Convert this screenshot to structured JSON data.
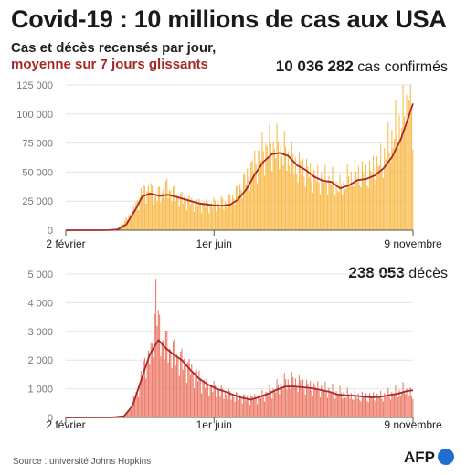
{
  "header": {
    "title": "Covid-19 : 10 millions de cas aux USA",
    "subtitle_line1": "Cas et décès recensés par jour,",
    "subtitle_line2": "moyenne sur 7 jours glissants"
  },
  "colors": {
    "cases_bar": "#f9bb4b",
    "deaths_bar": "#ec7a68",
    "average_line": "#a8282a",
    "subtitle_accent": "#a8282a",
    "logo": "#1f6fd1"
  },
  "footer": {
    "source": "Source : université Johns Hopkins",
    "logo_text": "AFP"
  },
  "chart_data": [
    {
      "type": "bar",
      "name": "cases",
      "summary_value": "10 036 282",
      "summary_label": "cas confirmés",
      "x_start": "2020-02-02",
      "x_end": "2020-11-09",
      "x_ticks": [
        {
          "date": "2020-02-02",
          "label": "2 février"
        },
        {
          "date": "2020-06-01",
          "label": "1er juin"
        },
        {
          "date": "2020-11-09",
          "label": "9 novembre"
        }
      ],
      "ylim": [
        0,
        125000
      ],
      "y_ticks": [
        {
          "value": 0,
          "label": "0"
        },
        {
          "value": 25000,
          "label": "25 000"
        },
        {
          "value": 50000,
          "label": "50 000"
        },
        {
          "value": 75000,
          "label": "75 000"
        },
        {
          "value": 100000,
          "label": "100 000"
        },
        {
          "value": 125000,
          "label": "125 000"
        }
      ],
      "grid": true,
      "series": [
        {
          "name": "daily",
          "points": [
            [
              "2020-02-02",
              0
            ],
            [
              "2020-03-01",
              40
            ],
            [
              "2020-03-08",
              150
            ],
            [
              "2020-03-15",
              1200
            ],
            [
              "2020-03-22",
              9000
            ],
            [
              "2020-03-29",
              19000
            ],
            [
              "2020-04-04",
              33000
            ],
            [
              "2020-04-10",
              35000
            ],
            [
              "2020-04-15",
              29000
            ],
            [
              "2020-04-24",
              36000
            ],
            [
              "2020-05-01",
              30000
            ],
            [
              "2020-05-08",
              26000
            ],
            [
              "2020-05-15",
              24000
            ],
            [
              "2020-05-22",
              22000
            ],
            [
              "2020-05-29",
              22000
            ],
            [
              "2020-06-05",
              23000
            ],
            [
              "2020-06-12",
              24000
            ],
            [
              "2020-06-19",
              31000
            ],
            [
              "2020-06-26",
              42000
            ],
            [
              "2020-07-03",
              55000
            ],
            [
              "2020-07-10",
              67000
            ],
            [
              "2020-07-17",
              72000
            ],
            [
              "2020-07-24",
              70000
            ],
            [
              "2020-07-31",
              63000
            ],
            [
              "2020-08-07",
              55000
            ],
            [
              "2020-08-14",
              52000
            ],
            [
              "2020-08-21",
              45000
            ],
            [
              "2020-08-28",
              44000
            ],
            [
              "2020-09-04",
              42000
            ],
            [
              "2020-09-11",
              36000
            ],
            [
              "2020-09-18",
              44000
            ],
            [
              "2020-09-25",
              48000
            ],
            [
              "2020-10-02",
              47000
            ],
            [
              "2020-10-09",
              52000
            ],
            [
              "2020-10-16",
              60000
            ],
            [
              "2020-10-23",
              78000
            ],
            [
              "2020-10-30",
              92000
            ],
            [
              "2020-11-04",
              105000
            ],
            [
              "2020-11-06",
              126000
            ],
            [
              "2020-11-07",
              118000
            ],
            [
              "2020-11-08",
              102000
            ],
            [
              "2020-11-09",
              76000
            ]
          ]
        },
        {
          "name": "7-day average",
          "points": [
            [
              "2020-02-02",
              0
            ],
            [
              "2020-03-01",
              30
            ],
            [
              "2020-03-08",
              100
            ],
            [
              "2020-03-15",
              600
            ],
            [
              "2020-03-22",
              5000
            ],
            [
              "2020-03-29",
              17000
            ],
            [
              "2020-04-04",
              29000
            ],
            [
              "2020-04-10",
              31500
            ],
            [
              "2020-04-18",
              29500
            ],
            [
              "2020-04-25",
              30500
            ],
            [
              "2020-05-02",
              28500
            ],
            [
              "2020-05-10",
              26000
            ],
            [
              "2020-05-20",
              23000
            ],
            [
              "2020-05-31",
              21500
            ],
            [
              "2020-06-07",
              21000
            ],
            [
              "2020-06-14",
              22000
            ],
            [
              "2020-06-20",
              26000
            ],
            [
              "2020-06-27",
              35000
            ],
            [
              "2020-07-04",
              48000
            ],
            [
              "2020-07-11",
              59000
            ],
            [
              "2020-07-18",
              65500
            ],
            [
              "2020-07-24",
              66500
            ],
            [
              "2020-07-31",
              64000
            ],
            [
              "2020-08-07",
              56000
            ],
            [
              "2020-08-14",
              52000
            ],
            [
              "2020-08-21",
              46000
            ],
            [
              "2020-08-28",
              42500
            ],
            [
              "2020-09-04",
              41500
            ],
            [
              "2020-09-11",
              36000
            ],
            [
              "2020-09-18",
              38500
            ],
            [
              "2020-09-25",
              43000
            ],
            [
              "2020-10-02",
              44000
            ],
            [
              "2020-10-09",
              47000
            ],
            [
              "2020-10-16",
              53000
            ],
            [
              "2020-10-23",
              63000
            ],
            [
              "2020-10-30",
              78000
            ],
            [
              "2020-11-04",
              93000
            ],
            [
              "2020-11-09",
              109000
            ]
          ]
        }
      ]
    },
    {
      "type": "bar",
      "name": "deaths",
      "summary_value": "238 053",
      "summary_label": "décès",
      "x_start": "2020-02-02",
      "x_end": "2020-11-09",
      "x_ticks": [
        {
          "date": "2020-02-02",
          "label": "2 février"
        },
        {
          "date": "2020-06-01",
          "label": "1er juin"
        },
        {
          "date": "2020-11-09",
          "label": "9 novembre"
        }
      ],
      "ylim": [
        0,
        5000
      ],
      "y_ticks": [
        {
          "value": 0,
          "label": "0"
        },
        {
          "value": 1000,
          "label": "1 000"
        },
        {
          "value": 2000,
          "label": "2 000"
        },
        {
          "value": 3000,
          "label": "3 000"
        },
        {
          "value": 4000,
          "label": "4 000"
        },
        {
          "value": 5000,
          "label": "5 000"
        }
      ],
      "grid": true,
      "series": [
        {
          "name": "daily",
          "points": [
            [
              "2020-02-02",
              0
            ],
            [
              "2020-03-01",
              1
            ],
            [
              "2020-03-10",
              5
            ],
            [
              "2020-03-18",
              30
            ],
            [
              "2020-03-24",
              200
            ],
            [
              "2020-03-31",
              900
            ],
            [
              "2020-04-07",
              2000
            ],
            [
              "2020-04-12",
              2200
            ],
            [
              "2020-04-15",
              4500
            ],
            [
              "2020-04-17",
              3100
            ],
            [
              "2020-04-21",
              2600
            ],
            [
              "2020-04-28",
              2300
            ],
            [
              "2020-05-05",
              2000
            ],
            [
              "2020-05-12",
              1700
            ],
            [
              "2020-05-19",
              1400
            ],
            [
              "2020-05-26",
              1100
            ],
            [
              "2020-06-02",
              1000
            ],
            [
              "2020-06-09",
              850
            ],
            [
              "2020-06-16",
              750
            ],
            [
              "2020-06-23",
              700
            ],
            [
              "2020-06-30",
              650
            ],
            [
              "2020-07-07",
              700
            ],
            [
              "2020-07-14",
              850
            ],
            [
              "2020-07-21",
              1000
            ],
            [
              "2020-07-28",
              1200
            ],
            [
              "2020-08-04",
              1250
            ],
            [
              "2020-08-11",
              1150
            ],
            [
              "2020-08-18",
              1050
            ],
            [
              "2020-08-25",
              1000
            ],
            [
              "2020-09-01",
              950
            ],
            [
              "2020-09-08",
              850
            ],
            [
              "2020-09-15",
              800
            ],
            [
              "2020-09-22",
              750
            ],
            [
              "2020-09-29",
              720
            ],
            [
              "2020-10-06",
              700
            ],
            [
              "2020-10-13",
              720
            ],
            [
              "2020-10-20",
              780
            ],
            [
              "2020-10-27",
              850
            ],
            [
              "2020-11-03",
              950
            ],
            [
              "2020-11-09",
              700
            ]
          ]
        },
        {
          "name": "7-day average",
          "points": [
            [
              "2020-02-02",
              0
            ],
            [
              "2020-03-10",
              3
            ],
            [
              "2020-03-20",
              40
            ],
            [
              "2020-03-27",
              400
            ],
            [
              "2020-04-03",
              1300
            ],
            [
              "2020-04-10",
              2200
            ],
            [
              "2020-04-17",
              2700
            ],
            [
              "2020-04-22",
              2450
            ],
            [
              "2020-04-29",
              2200
            ],
            [
              "2020-05-06",
              2000
            ],
            [
              "2020-05-13",
              1650
            ],
            [
              "2020-05-20",
              1350
            ],
            [
              "2020-05-27",
              1150
            ],
            [
              "2020-06-03",
              1000
            ],
            [
              "2020-06-10",
              900
            ],
            [
              "2020-06-17",
              780
            ],
            [
              "2020-06-24",
              680
            ],
            [
              "2020-07-01",
              620
            ],
            [
              "2020-07-08",
              720
            ],
            [
              "2020-07-15",
              830
            ],
            [
              "2020-07-22",
              970
            ],
            [
              "2020-07-29",
              1080
            ],
            [
              "2020-08-05",
              1080
            ],
            [
              "2020-08-12",
              1050
            ],
            [
              "2020-08-19",
              1020
            ],
            [
              "2020-08-26",
              960
            ],
            [
              "2020-09-02",
              900
            ],
            [
              "2020-09-09",
              800
            ],
            [
              "2020-09-16",
              770
            ],
            [
              "2020-09-23",
              760
            ],
            [
              "2020-09-30",
              720
            ],
            [
              "2020-10-07",
              700
            ],
            [
              "2020-10-14",
              720
            ],
            [
              "2020-10-21",
              780
            ],
            [
              "2020-10-28",
              830
            ],
            [
              "2020-11-04",
              920
            ],
            [
              "2020-11-09",
              950
            ]
          ]
        }
      ]
    }
  ]
}
